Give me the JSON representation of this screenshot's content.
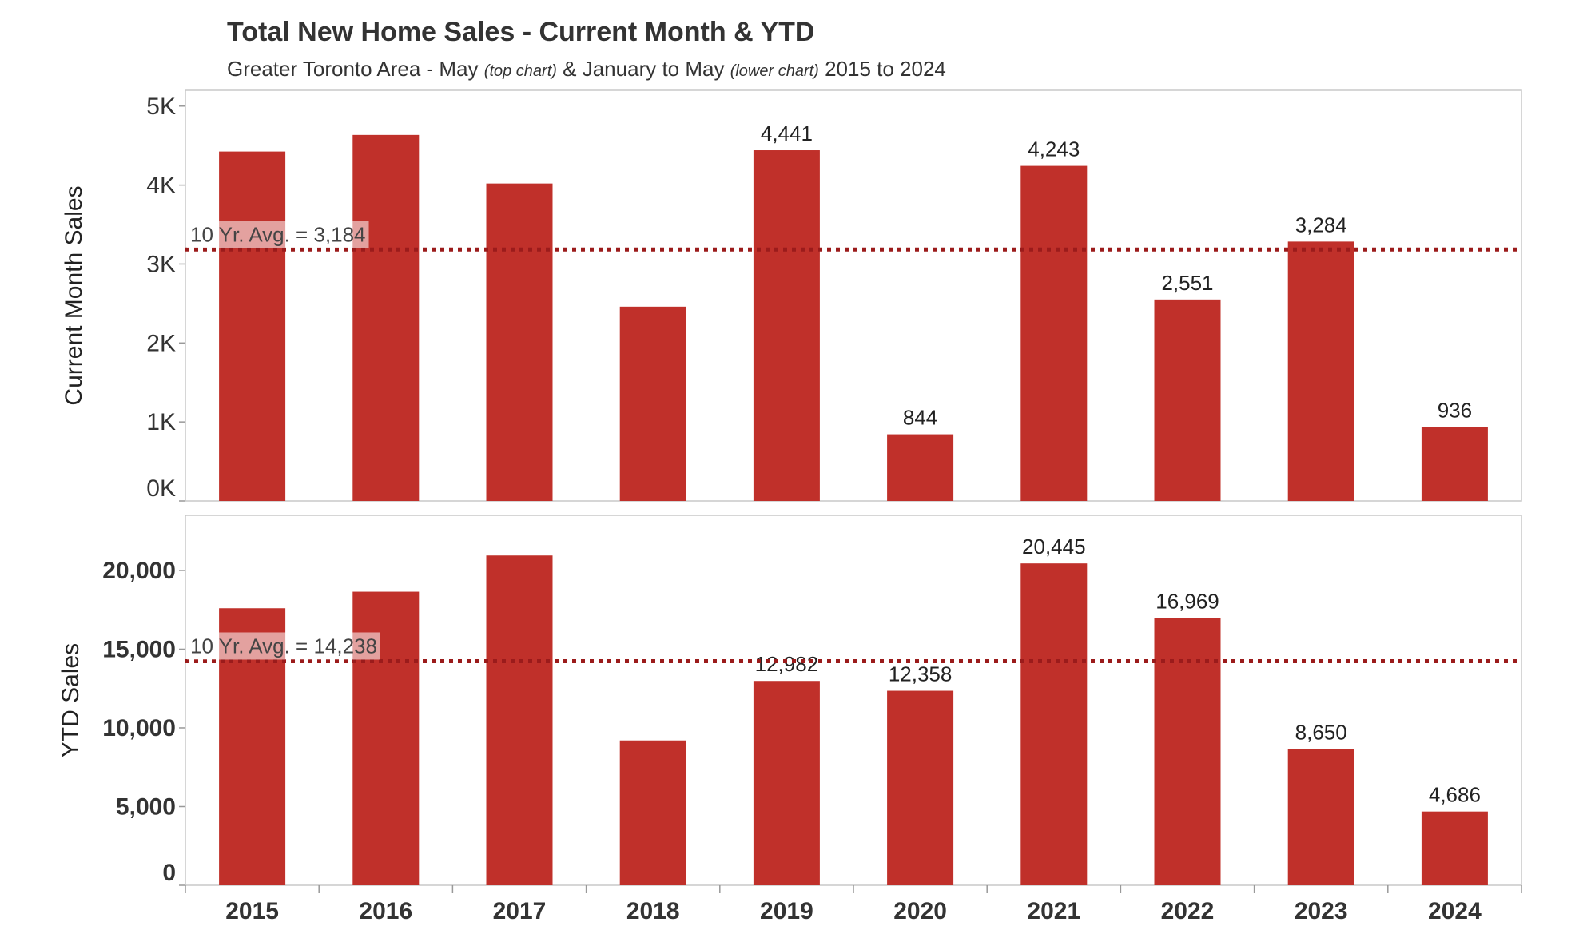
{
  "title": "Total New Home Sales - Current Month & YTD",
  "subtitle": {
    "part1": "Greater Toronto Area - May ",
    "note1": "(top chart)",
    "part2": " & January to May ",
    "note2": "(lower chart)",
    "part3": " 2015 to 2024"
  },
  "colors": {
    "bar": "#c0302a",
    "avg_line": "#9b1b1b",
    "frame": "#c8c8c8",
    "text": "#333333"
  },
  "chart_data": [
    {
      "type": "bar",
      "title": "Current Month Sales",
      "ylabel": "Current Month Sales",
      "xlabel": "",
      "categories": [
        "2015",
        "2016",
        "2017",
        "2018",
        "2019",
        "2020",
        "2021",
        "2022",
        "2023",
        "2024"
      ],
      "values": [
        4425,
        4635,
        4020,
        2460,
        4441,
        844,
        4243,
        2551,
        3284,
        936
      ],
      "data_labels": [
        "",
        "",
        "",
        "",
        "4,441",
        "844",
        "4,243",
        "2,551",
        "3,284",
        "936"
      ],
      "ylim": [
        0,
        5200
      ],
      "yticks": [
        0,
        1000,
        2000,
        3000,
        4000,
        5000
      ],
      "ytick_labels": [
        "0K",
        "1K",
        "2K",
        "3K",
        "4K",
        "5K"
      ],
      "average": {
        "value": 3184,
        "label": "10 Yr. Avg. = 3,184"
      },
      "grid": false
    },
    {
      "type": "bar",
      "title": "YTD Sales",
      "ylabel": "YTD Sales",
      "xlabel": "",
      "categories": [
        "2015",
        "2016",
        "2017",
        "2018",
        "2019",
        "2020",
        "2021",
        "2022",
        "2023",
        "2024"
      ],
      "values": [
        17600,
        18650,
        20950,
        9200,
        12982,
        12358,
        20445,
        16969,
        8650,
        4686
      ],
      "data_labels": [
        "",
        "",
        "",
        "",
        "12,982",
        "12,358",
        "20,445",
        "16,969",
        "8,650",
        "4,686"
      ],
      "ylim": [
        0,
        23500
      ],
      "yticks": [
        0,
        5000,
        10000,
        15000,
        20000
      ],
      "ytick_labels": [
        "0",
        "5,000",
        "10,000",
        "15,000",
        "20,000"
      ],
      "average": {
        "value": 14238,
        "label": "10 Yr. Avg. = 14,238"
      },
      "grid": false
    }
  ]
}
